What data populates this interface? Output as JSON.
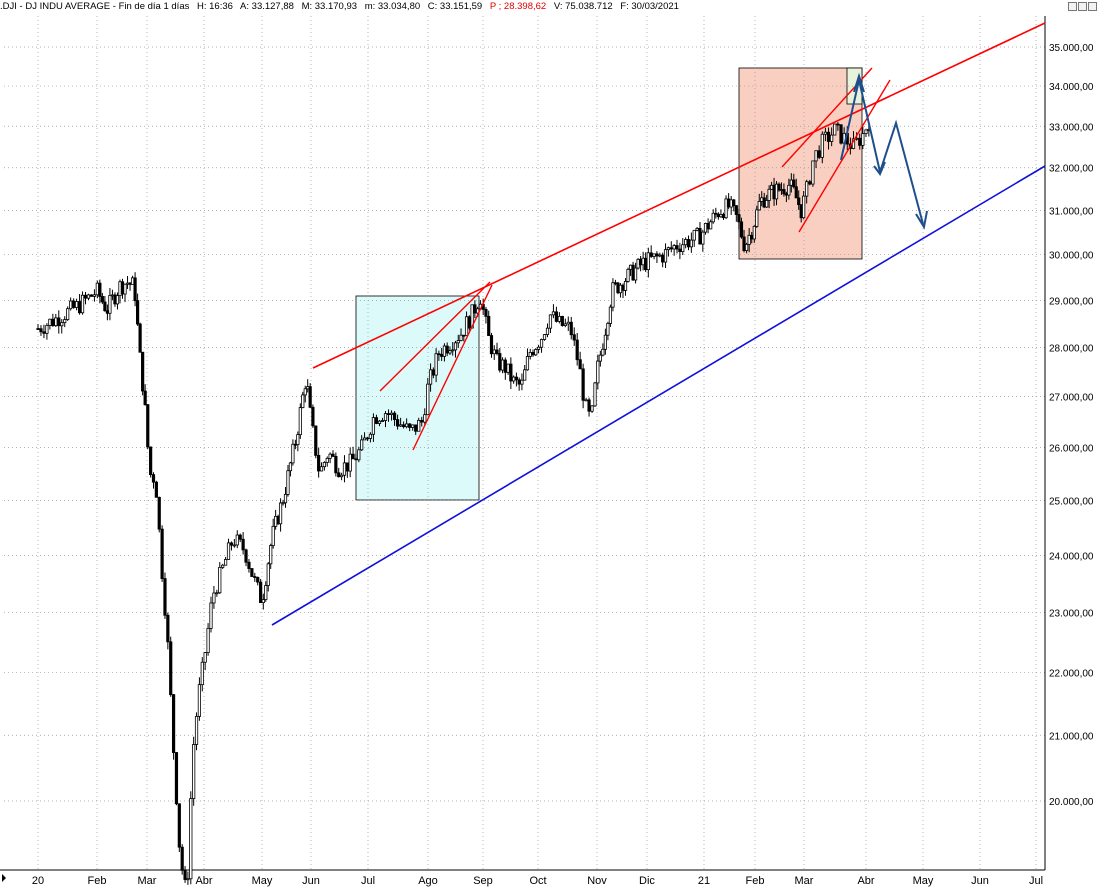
{
  "header": {
    "symbol": ".DJI - DJ INDU AVERAGE - Fin de día 1 días",
    "high": "H: 16:36",
    "ask": "A: 33.127,88",
    "max": "M: 33.170,93",
    "min": "m: 33.034,80",
    "close": "C: 33.151,59",
    "p_value": "P ; 28.398,62",
    "volume": "V: 75.038.712",
    "date": "F: 30/03/2021"
  },
  "window_buttons": [
    "minimize-icon",
    "maximize-icon",
    "close-icon"
  ],
  "colors": {
    "candle": "#000000",
    "trend_red": "#ff0000",
    "trend_blue": "#1010dd",
    "forecast_arrow": "#1f4e8c",
    "box_cyan": "#dcfafa",
    "box_salmon": "#f8cfc0",
    "box_small": "#e8f3dc",
    "grid": "#999999"
  },
  "chart_data": {
    "type": "candlestick",
    "title": ".DJI - DJ INDU AVERAGE",
    "y_axis": {
      "ticks": [
        20000,
        21000,
        22000,
        23000,
        24000,
        25000,
        26000,
        27000,
        28000,
        29000,
        30000,
        31000,
        32000,
        33000,
        34000,
        35000
      ],
      "tick_labels": [
        "20.000,00",
        "21.000,00",
        "22.000,00",
        "23.000,00",
        "24.000,00",
        "25.000,00",
        "26.000,00",
        "27.000,00",
        "28.000,00",
        "29.000,00",
        "30.000,00",
        "31.000,00",
        "32.000,00",
        "33.000,00",
        "34.000,00",
        "35.000,00"
      ],
      "scale": "log",
      "position": "right"
    },
    "x_axis": {
      "tick_labels": [
        "20",
        "Feb",
        "Mar",
        "Abr",
        "May",
        "Jun",
        "Jul",
        "Ago",
        "Sep",
        "Oct",
        "Nov",
        "Dic",
        "21",
        "Feb",
        "Mar",
        "Abr",
        "May",
        "Jun",
        "Jul"
      ]
    },
    "grid": true,
    "close_series": [
      {
        "t": 0.0,
        "v": 28400
      },
      {
        "t": 0.3,
        "v": 28600
      },
      {
        "t": 0.7,
        "v": 28900
      },
      {
        "t": 1.0,
        "v": 29200
      },
      {
        "t": 1.2,
        "v": 28800
      },
      {
        "t": 1.45,
        "v": 29300
      },
      {
        "t": 1.6,
        "v": 29400
      },
      {
        "t": 1.75,
        "v": 29300
      },
      {
        "t": 1.85,
        "v": 27900
      },
      {
        "t": 1.95,
        "v": 26900
      },
      {
        "t": 2.05,
        "v": 25500
      },
      {
        "t": 2.15,
        "v": 25400
      },
      {
        "t": 2.25,
        "v": 23900
      },
      {
        "t": 2.35,
        "v": 22700
      },
      {
        "t": 2.45,
        "v": 21000
      },
      {
        "t": 2.58,
        "v": 19200
      },
      {
        "t": 2.7,
        "v": 18600
      },
      {
        "t": 2.8,
        "v": 20700
      },
      {
        "t": 2.9,
        "v": 21600
      },
      {
        "t": 3.0,
        "v": 22200
      },
      {
        "t": 3.15,
        "v": 23300
      },
      {
        "t": 3.3,
        "v": 23700
      },
      {
        "t": 3.5,
        "v": 24300
      },
      {
        "t": 3.7,
        "v": 24100
      },
      {
        "t": 3.85,
        "v": 23600
      },
      {
        "t": 4.0,
        "v": 23200
      },
      {
        "t": 4.2,
        "v": 24300
      },
      {
        "t": 4.45,
        "v": 25100
      },
      {
        "t": 4.7,
        "v": 26200
      },
      {
        "t": 4.9,
        "v": 27400
      },
      {
        "t": 5.0,
        "v": 26500
      },
      {
        "t": 5.15,
        "v": 25500
      },
      {
        "t": 5.3,
        "v": 25900
      },
      {
        "t": 5.5,
        "v": 25600
      },
      {
        "t": 5.7,
        "v": 25700
      },
      {
        "t": 5.9,
        "v": 26000
      },
      {
        "t": 6.1,
        "v": 26600
      },
      {
        "t": 6.3,
        "v": 26700
      },
      {
        "t": 6.5,
        "v": 26500
      },
      {
        "t": 6.7,
        "v": 26300
      },
      {
        "t": 6.9,
        "v": 26500
      },
      {
        "t": 7.0,
        "v": 27200
      },
      {
        "t": 7.2,
        "v": 27900
      },
      {
        "t": 7.4,
        "v": 28100
      },
      {
        "t": 7.6,
        "v": 28300
      },
      {
        "t": 7.8,
        "v": 28700
      },
      {
        "t": 7.95,
        "v": 29100
      },
      {
        "t": 8.1,
        "v": 28200
      },
      {
        "t": 8.25,
        "v": 27700
      },
      {
        "t": 8.4,
        "v": 27600
      },
      {
        "t": 8.55,
        "v": 27300
      },
      {
        "t": 8.7,
        "v": 27200
      },
      {
        "t": 8.85,
        "v": 27900
      },
      {
        "t": 9.05,
        "v": 28200
      },
      {
        "t": 9.2,
        "v": 28700
      },
      {
        "t": 9.35,
        "v": 28500
      },
      {
        "t": 9.55,
        "v": 28400
      },
      {
        "t": 9.7,
        "v": 27600
      },
      {
        "t": 9.8,
        "v": 26800
      },
      {
        "t": 9.9,
        "v": 26500
      },
      {
        "t": 10.0,
        "v": 27500
      },
      {
        "t": 10.15,
        "v": 28300
      },
      {
        "t": 10.3,
        "v": 29200
      },
      {
        "t": 10.5,
        "v": 29400
      },
      {
        "t": 10.7,
        "v": 29600
      },
      {
        "t": 10.9,
        "v": 29800
      },
      {
        "t": 11.1,
        "v": 29900
      },
      {
        "t": 11.3,
        "v": 30000
      },
      {
        "t": 11.5,
        "v": 30200
      },
      {
        "t": 11.7,
        "v": 30300
      },
      {
        "t": 11.9,
        "v": 30400
      },
      {
        "t": 12.1,
        "v": 30700
      },
      {
        "t": 12.3,
        "v": 31000
      },
      {
        "t": 12.5,
        "v": 31100
      },
      {
        "t": 12.65,
        "v": 30800
      },
      {
        "t": 12.8,
        "v": 30200
      },
      {
        "t": 12.95,
        "v": 30600
      },
      {
        "t": 13.1,
        "v": 31200
      },
      {
        "t": 13.3,
        "v": 31400
      },
      {
        "t": 13.5,
        "v": 31500
      },
      {
        "t": 13.7,
        "v": 31600
      },
      {
        "t": 13.8,
        "v": 31400
      },
      {
        "t": 13.95,
        "v": 31000
      },
      {
        "t": 14.05,
        "v": 31500
      },
      {
        "t": 14.15,
        "v": 32200
      },
      {
        "t": 14.3,
        "v": 32600
      },
      {
        "t": 14.5,
        "v": 32900
      },
      {
        "t": 14.65,
        "v": 32700
      },
      {
        "t": 14.8,
        "v": 32500
      },
      {
        "t": 14.95,
        "v": 32800
      },
      {
        "t": 15.05,
        "v": 33150
      }
    ]
  }
}
